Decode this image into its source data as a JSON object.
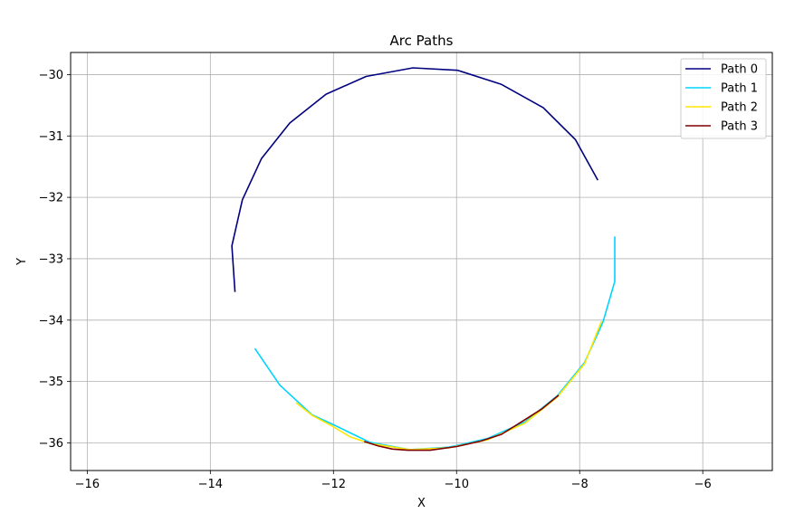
{
  "chart_data": {
    "type": "line",
    "title": "Arc Paths",
    "xlabel": "X",
    "ylabel": "Y",
    "xlim": [
      -16.27,
      -4.87
    ],
    "ylim": [
      -36.45,
      -29.64
    ],
    "xticks": [
      -16,
      -14,
      -12,
      -10,
      -8,
      -6
    ],
    "yticks": [
      -30,
      -31,
      -32,
      -33,
      -34,
      -35,
      -36
    ],
    "xtick_labels": [
      "−16",
      "−14",
      "−12",
      "−10",
      "−8",
      "−6"
    ],
    "ytick_labels": [
      "−30",
      "−31",
      "−32",
      "−33",
      "−34",
      "−35",
      "−36"
    ],
    "grid": true,
    "legend_position": "top-right",
    "series": [
      {
        "name": "Path 0",
        "color": "#00007f",
        "points": [
          [
            -13.6,
            -33.53
          ],
          [
            -13.65,
            -32.79
          ],
          [
            -13.48,
            -32.04
          ],
          [
            -13.17,
            -31.37
          ],
          [
            -12.71,
            -30.79
          ],
          [
            -12.12,
            -30.32
          ],
          [
            -11.47,
            -30.03
          ],
          [
            -10.71,
            -29.89
          ],
          [
            -9.98,
            -29.93
          ],
          [
            -9.27,
            -30.16
          ],
          [
            -8.59,
            -30.54
          ],
          [
            -8.07,
            -31.06
          ],
          [
            -7.71,
            -31.71
          ]
        ]
      },
      {
        "name": "Path 1",
        "color": "#00d4ff",
        "points": [
          [
            -7.43,
            -32.65
          ],
          [
            -7.43,
            -33.37
          ],
          [
            -7.62,
            -34.03
          ],
          [
            -7.92,
            -34.69
          ],
          [
            -8.36,
            -35.23
          ],
          [
            -8.89,
            -35.66
          ],
          [
            -9.5,
            -35.93
          ],
          [
            -10.12,
            -36.07
          ],
          [
            -10.76,
            -36.11
          ],
          [
            -11.41,
            -35.99
          ],
          [
            -12.03,
            -35.69
          ],
          [
            -12.35,
            -35.54
          ],
          [
            -12.87,
            -35.06
          ],
          [
            -13.27,
            -34.47
          ]
        ]
      },
      {
        "name": "Path 2",
        "color": "#ffe600",
        "points": [
          [
            -7.65,
            -34.03
          ],
          [
            -7.92,
            -34.71
          ],
          [
            -8.36,
            -35.25
          ],
          [
            -8.89,
            -35.68
          ],
          [
            -9.5,
            -35.95
          ],
          [
            -10.12,
            -36.08
          ],
          [
            -10.76,
            -36.11
          ],
          [
            -11.41,
            -36.01
          ],
          [
            -11.73,
            -35.9
          ],
          [
            -12.03,
            -35.72
          ],
          [
            -12.35,
            -35.55
          ],
          [
            -12.6,
            -35.35
          ]
        ]
      },
      {
        "name": "Path 3",
        "color": "#7f0000",
        "points": [
          [
            -8.35,
            -35.23
          ],
          [
            -8.62,
            -35.45
          ],
          [
            -8.95,
            -35.66
          ],
          [
            -9.27,
            -35.86
          ],
          [
            -9.6,
            -35.97
          ],
          [
            -10.0,
            -36.06
          ],
          [
            -10.43,
            -36.12
          ],
          [
            -10.79,
            -36.12
          ],
          [
            -11.04,
            -36.1
          ],
          [
            -11.27,
            -36.05
          ],
          [
            -11.49,
            -35.98
          ]
        ]
      }
    ]
  }
}
